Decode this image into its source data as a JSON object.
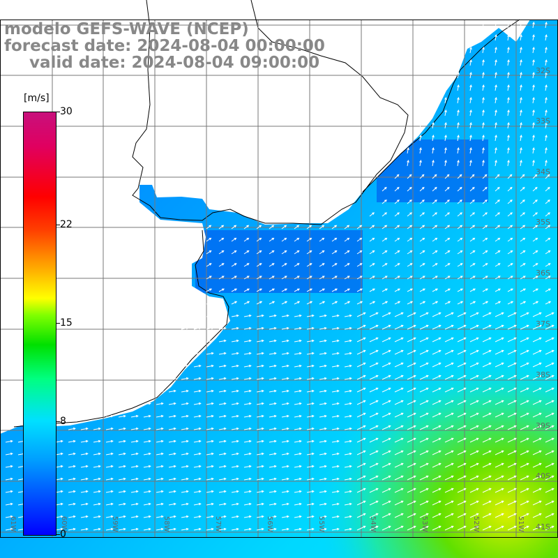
{
  "title": {
    "line1": "modelo GEFS-WAVE (NCEP)",
    "line2": "forecast date: 2024-08-04 00:00:00",
    "line3": "valid date: 2024-08-04 09:00:00"
  },
  "colorbar": {
    "unit": "[m/s]",
    "ticks": [
      {
        "label": "30",
        "value": 30
      },
      {
        "label": "22",
        "value": 22
      },
      {
        "label": "15",
        "value": 15
      },
      {
        "label": "8",
        "value": 8
      },
      {
        "label": "0",
        "value": 0
      }
    ],
    "min": 0,
    "max": 30
  },
  "lat_labels": [
    "32S",
    "33S",
    "34S",
    "35S",
    "36S",
    "37S",
    "38S",
    "39S",
    "40S",
    "41S"
  ],
  "lon_labels": [
    "61W",
    "60W",
    "59W",
    "58W",
    "57W",
    "56W",
    "55W",
    "54W",
    "53W",
    "52W",
    "51W"
  ],
  "colors": {
    "ocean_calm": "#0064ff",
    "ocean_mid": "#00c8ff",
    "ocean_strong": "#40e000",
    "land": "#ffffff",
    "grid": "#888888",
    "arrows": "#ffffff"
  }
}
